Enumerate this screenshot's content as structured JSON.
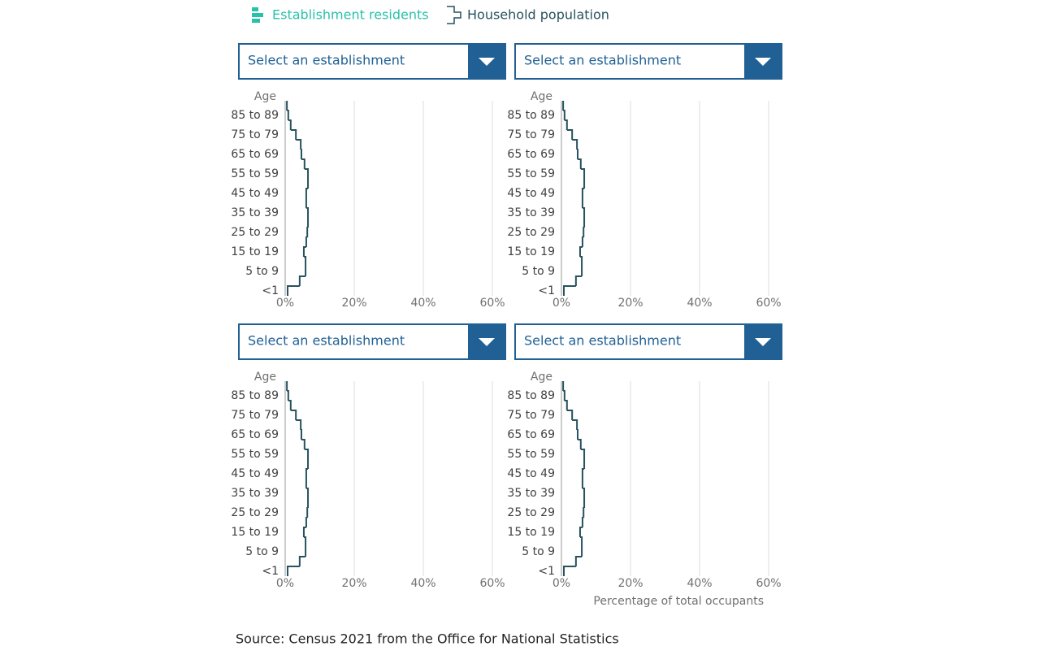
{
  "legend": [
    {
      "name": "Establishment residents",
      "color": "#27c2a8"
    },
    {
      "name": "Household population",
      "color": "#27525e"
    }
  ],
  "source": "Source: Census 2021 from the Office for National Statistics",
  "chart_data": [
    {
      "type": "step",
      "dropdown": "Select an establishment",
      "y_label": "Age",
      "categories": [
        "<1",
        null,
        "5 to 9",
        null,
        "15 to 19",
        null,
        "25 to 29",
        null,
        "35 to 39",
        null,
        "45 to 49",
        null,
        "55 to 59",
        null,
        "65 to 69",
        null,
        "75 to 79",
        null,
        "85 to 89",
        null
      ],
      "series": [
        {
          "name": "Household population",
          "color": "#27525e",
          "values": [
            0.7,
            4.2,
            5.9,
            5.9,
            5.4,
            6.1,
            6.4,
            6.6,
            6.6,
            6.1,
            6.1,
            6.6,
            6.6,
            5.6,
            4.7,
            4.5,
            3.1,
            1.6,
            0.9,
            0.5
          ]
        }
      ],
      "xlim": [
        0,
        60
      ],
      "xticks": [
        {
          "value": 0,
          "label": "0%"
        },
        {
          "value": 20,
          "label": "20%"
        },
        {
          "value": 40,
          "label": "40%"
        },
        {
          "value": 60,
          "label": "60%"
        }
      ],
      "grid": true
    },
    {
      "type": "step",
      "dropdown": "Select an establishment",
      "y_label": "Age",
      "categories": [
        "<1",
        null,
        "5 to 9",
        null,
        "15 to 19",
        null,
        "25 to 29",
        null,
        "35 to 39",
        null,
        "45 to 49",
        null,
        "55 to 59",
        null,
        "65 to 69",
        null,
        "75 to 79",
        null,
        "85 to 89",
        null
      ],
      "series": [
        {
          "name": "Household population",
          "color": "#27525e",
          "values": [
            0.7,
            4.2,
            5.9,
            5.9,
            5.4,
            6.1,
            6.4,
            6.6,
            6.6,
            6.1,
            6.1,
            6.6,
            6.6,
            5.6,
            4.7,
            4.5,
            3.1,
            1.6,
            0.9,
            0.5
          ]
        }
      ],
      "xlim": [
        0,
        60
      ],
      "xticks": [
        {
          "value": 0,
          "label": "0%"
        },
        {
          "value": 20,
          "label": "20%"
        },
        {
          "value": 40,
          "label": "40%"
        },
        {
          "value": 60,
          "label": "60%"
        }
      ],
      "grid": true
    },
    {
      "type": "step",
      "dropdown": "Select an establishment",
      "y_label": "Age",
      "categories": [
        "<1",
        null,
        "5 to 9",
        null,
        "15 to 19",
        null,
        "25 to 29",
        null,
        "35 to 39",
        null,
        "45 to 49",
        null,
        "55 to 59",
        null,
        "65 to 69",
        null,
        "75 to 79",
        null,
        "85 to 89",
        null
      ],
      "series": [
        {
          "name": "Household population",
          "color": "#27525e",
          "values": [
            0.7,
            4.2,
            5.9,
            5.9,
            5.4,
            6.1,
            6.4,
            6.6,
            6.6,
            6.1,
            6.1,
            6.6,
            6.6,
            5.6,
            4.7,
            4.5,
            3.1,
            1.6,
            0.9,
            0.5
          ]
        }
      ],
      "xlim": [
        0,
        60
      ],
      "xticks": [
        {
          "value": 0,
          "label": "0%"
        },
        {
          "value": 20,
          "label": "20%"
        },
        {
          "value": 40,
          "label": "40%"
        },
        {
          "value": 60,
          "label": "60%"
        }
      ],
      "grid": true
    },
    {
      "type": "step",
      "dropdown": "Select an establishment",
      "y_label": "Age",
      "x_label": "Percentage of total occupants",
      "categories": [
        "<1",
        null,
        "5 to 9",
        null,
        "15 to 19",
        null,
        "25 to 29",
        null,
        "35 to 39",
        null,
        "45 to 49",
        null,
        "55 to 59",
        null,
        "65 to 69",
        null,
        "75 to 79",
        null,
        "85 to 89",
        null
      ],
      "series": [
        {
          "name": "Household population",
          "color": "#27525e",
          "values": [
            0.7,
            4.2,
            5.9,
            5.9,
            5.4,
            6.1,
            6.4,
            6.6,
            6.6,
            6.1,
            6.1,
            6.6,
            6.6,
            5.6,
            4.7,
            4.5,
            3.1,
            1.6,
            0.9,
            0.5
          ]
        }
      ],
      "xlim": [
        0,
        60
      ],
      "xticks": [
        {
          "value": 0,
          "label": "0%"
        },
        {
          "value": 20,
          "label": "20%"
        },
        {
          "value": 40,
          "label": "40%"
        },
        {
          "value": 60,
          "label": "60%"
        }
      ],
      "grid": true
    }
  ]
}
